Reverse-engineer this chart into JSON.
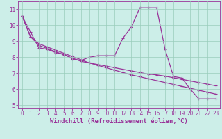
{
  "xlabel": "Windchill (Refroidissement éolien,°C)",
  "background_color": "#cceee8",
  "line_color": "#993399",
  "xlim": [
    -0.5,
    23.5
  ],
  "ylim": [
    4.8,
    11.5
  ],
  "xticks": [
    0,
    1,
    2,
    3,
    4,
    5,
    6,
    7,
    8,
    9,
    10,
    11,
    12,
    13,
    14,
    15,
    16,
    17,
    18,
    19,
    20,
    21,
    22,
    23
  ],
  "yticks": [
    5,
    6,
    7,
    8,
    9,
    10,
    11
  ],
  "grid_color": "#99ccbb",
  "line1_x": [
    0,
    1,
    2,
    3,
    4,
    5,
    6,
    7,
    8,
    9,
    10,
    11,
    12,
    13,
    14,
    15,
    16,
    17,
    18,
    19,
    20,
    21,
    22,
    23
  ],
  "line1_y": [
    10.6,
    9.6,
    8.6,
    8.5,
    8.3,
    8.2,
    7.9,
    7.8,
    8.0,
    8.1,
    8.1,
    8.1,
    9.2,
    9.9,
    11.1,
    11.1,
    11.1,
    8.5,
    6.8,
    6.7,
    6.0,
    5.4,
    5.4,
    5.4
  ],
  "line2_x": [
    0,
    1,
    2,
    3,
    4,
    5,
    6,
    7,
    8,
    9,
    10,
    11,
    12,
    13,
    14,
    15,
    16,
    17,
    18,
    19,
    20,
    21,
    22,
    23
  ],
  "line2_y": [
    10.6,
    9.3,
    8.85,
    8.65,
    8.45,
    8.25,
    8.05,
    7.85,
    7.65,
    7.5,
    7.35,
    7.2,
    7.05,
    6.9,
    6.78,
    6.66,
    6.54,
    6.42,
    6.3,
    6.18,
    6.06,
    5.94,
    5.82,
    5.7
  ],
  "line3_x": [
    0,
    1,
    2,
    3,
    4,
    5,
    6,
    7,
    8,
    9,
    10,
    11,
    12,
    13,
    14,
    15,
    16,
    17,
    18,
    19,
    20,
    21,
    22,
    23
  ],
  "line3_y": [
    10.6,
    9.3,
    8.75,
    8.55,
    8.35,
    8.15,
    7.95,
    7.75,
    7.65,
    7.55,
    7.45,
    7.35,
    7.25,
    7.15,
    7.05,
    6.95,
    6.9,
    6.82,
    6.72,
    6.62,
    6.52,
    6.42,
    6.32,
    6.22
  ],
  "marker": "+",
  "markersize": 3,
  "linewidth": 0.9,
  "xlabel_fontsize": 6.5,
  "tick_fontsize": 5.5
}
